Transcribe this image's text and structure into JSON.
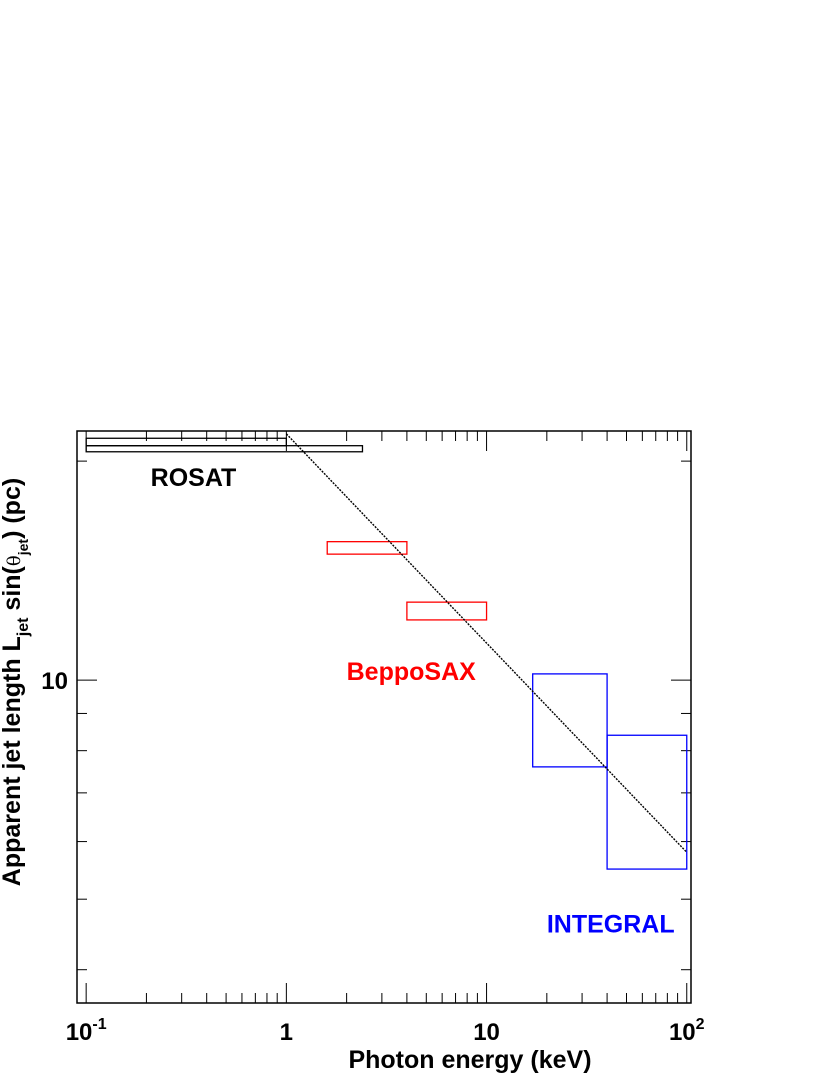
{
  "chart_data": {
    "type": "scatter",
    "xlabel": "Photon energy (keV)",
    "ylabel": {
      "p1": "Apparent jet length L",
      "sub1": "jet",
      "p2": " sin(",
      "theta": "θ",
      "sub2": "jet",
      "p3": ") (pc)"
    },
    "x_scale": "log",
    "y_scale": "log",
    "xlim": [
      0.09,
      105
    ],
    "ylim": [
      3.6,
      22
    ],
    "grid": false,
    "x_tick_labels": [
      {
        "value": 0.1,
        "base": "10",
        "exp": "-1"
      },
      {
        "value": 1,
        "base": "1",
        "exp": ""
      },
      {
        "value": 10,
        "base": "10",
        "exp": ""
      },
      {
        "value": 100,
        "base": "10",
        "exp": "2"
      }
    ],
    "y_tick_labels": [
      {
        "value": 10,
        "text": "10"
      }
    ],
    "boxes": [
      {
        "instrument": "ROSAT",
        "color": "#000000",
        "x": [
          0.1,
          1.0
        ],
        "y": [
          21.0,
          21.5
        ]
      },
      {
        "instrument": "ROSAT",
        "color": "#000000",
        "x": [
          0.1,
          2.4
        ],
        "y": [
          20.6,
          21.0
        ]
      },
      {
        "instrument": "BeppoSAX",
        "color": "#ff0000",
        "x": [
          1.6,
          4.0
        ],
        "y": [
          14.9,
          15.5
        ]
      },
      {
        "instrument": "BeppoSAX",
        "color": "#ff0000",
        "x": [
          4.0,
          10.0
        ],
        "y": [
          12.1,
          12.8
        ]
      },
      {
        "instrument": "INTEGRAL",
        "color": "#0000ff",
        "x": [
          17.0,
          40.0
        ],
        "y": [
          7.6,
          10.2
        ]
      },
      {
        "instrument": "INTEGRAL",
        "color": "#0000ff",
        "x": [
          40.0,
          100.0
        ],
        "y": [
          5.5,
          8.4
        ]
      }
    ],
    "fit_line": {
      "color": "#000000",
      "x": [
        1.0,
        100.0
      ],
      "y": [
        21.8,
        5.8
      ]
    },
    "annotations": [
      {
        "text": "ROSAT",
        "color": "#000000",
        "x": 0.21,
        "y": 18.5
      },
      {
        "text": "BeppoSAX",
        "color": "#ff0000",
        "x": 2.0,
        "y": 10.0
      },
      {
        "text": "INTEGRAL",
        "color": "#0000ff",
        "x": 20.0,
        "y": 4.5
      }
    ]
  }
}
